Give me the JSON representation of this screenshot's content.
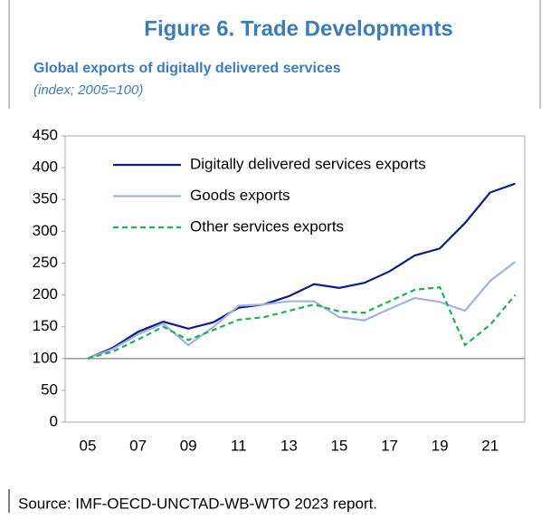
{
  "chart_data": {
    "type": "line",
    "title": "Figure 6. Trade Developments",
    "subtitle": "Global exports of digitally delivered services",
    "unit_note": "(index; 2005=100)",
    "source": "Source: IMF-OECD-UNCTAD-WB-WTO 2023 report.",
    "categories": [
      "05",
      null,
      "07",
      null,
      "09",
      null,
      "11",
      null,
      "13",
      null,
      "15",
      null,
      "17",
      null,
      "19",
      null,
      "21",
      null
    ],
    "series": [
      {
        "name": "Digitally delivered services exports",
        "color": "#0d1b8c",
        "dash": false,
        "values": [
          100,
          117,
          142,
          158,
          147,
          157,
          180,
          185,
          198,
          217,
          211,
          219,
          237,
          262,
          273,
          313,
          361,
          375
        ]
      },
      {
        "name": "Goods exports",
        "color": "#9fb3e2",
        "dash": false,
        "values": [
          100,
          115,
          138,
          155,
          121,
          150,
          183,
          185,
          190,
          190,
          165,
          160,
          178,
          195,
          189,
          175,
          222,
          252
        ]
      },
      {
        "name": "Other services exports",
        "color": "#1db34f",
        "dash": true,
        "values": [
          100,
          111,
          130,
          150,
          129,
          145,
          161,
          165,
          175,
          185,
          174,
          172,
          190,
          208,
          212,
          121,
          153,
          200
        ]
      }
    ],
    "ylim": [
      0,
      450
    ],
    "yticks": [
      0,
      50,
      100,
      150,
      200,
      250,
      300,
      350,
      400,
      450
    ],
    "x_axis_at": 100,
    "legend": "top-left"
  }
}
